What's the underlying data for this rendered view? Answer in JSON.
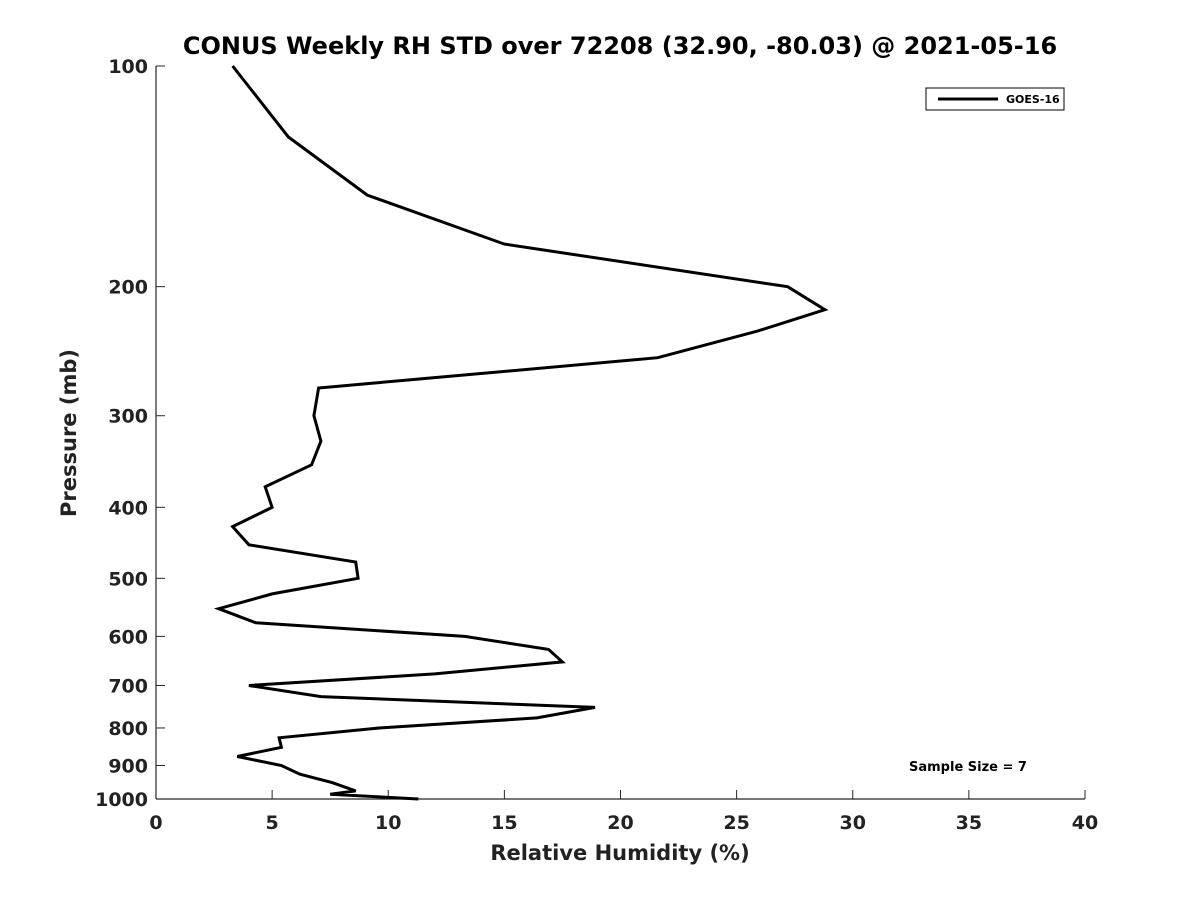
{
  "chart_data": {
    "type": "line",
    "title": "CONUS Weekly RH STD over 72208 (32.90, -80.03) @ 2021-05-16",
    "xlabel": "Relative Humidity (%)",
    "ylabel": "Pressure (mb)",
    "xlim": [
      0,
      40
    ],
    "ylim": [
      100,
      1000
    ],
    "y_scale": "log",
    "y_reversed": true,
    "x_ticks": [
      0,
      5,
      10,
      15,
      20,
      25,
      30,
      35,
      40
    ],
    "x_tick_labels": [
      "0",
      "5",
      "10",
      "15",
      "20",
      "25",
      "30",
      "35",
      "40"
    ],
    "y_ticks": [
      100,
      200,
      300,
      400,
      500,
      600,
      700,
      800,
      900,
      1000
    ],
    "y_tick_labels": [
      "100",
      "200",
      "300",
      "400",
      "500",
      "600",
      "700",
      "800",
      "900",
      "1000"
    ],
    "grid": false,
    "legend_position": "top-right",
    "annotation": "Sample Size = 7",
    "series": [
      {
        "name": "GOES-16",
        "color": "#000000",
        "points": [
          {
            "x": 3.3,
            "y": 100
          },
          {
            "x": 5.7,
            "y": 125
          },
          {
            "x": 9.1,
            "y": 150
          },
          {
            "x": 15.0,
            "y": 175
          },
          {
            "x": 27.2,
            "y": 200
          },
          {
            "x": 28.8,
            "y": 215
          },
          {
            "x": 25.9,
            "y": 230
          },
          {
            "x": 21.6,
            "y": 250
          },
          {
            "x": 7.0,
            "y": 275
          },
          {
            "x": 6.8,
            "y": 300
          },
          {
            "x": 7.1,
            "y": 325
          },
          {
            "x": 6.7,
            "y": 350
          },
          {
            "x": 4.7,
            "y": 375
          },
          {
            "x": 5.0,
            "y": 400
          },
          {
            "x": 3.3,
            "y": 425
          },
          {
            "x": 4.0,
            "y": 450
          },
          {
            "x": 8.6,
            "y": 475
          },
          {
            "x": 8.7,
            "y": 500
          },
          {
            "x": 5.0,
            "y": 525
          },
          {
            "x": 2.7,
            "y": 550
          },
          {
            "x": 4.3,
            "y": 575
          },
          {
            "x": 13.3,
            "y": 600
          },
          {
            "x": 16.9,
            "y": 625
          },
          {
            "x": 17.5,
            "y": 650
          },
          {
            "x": 12.0,
            "y": 675
          },
          {
            "x": 4.0,
            "y": 700
          },
          {
            "x": 7.1,
            "y": 725
          },
          {
            "x": 18.9,
            "y": 750
          },
          {
            "x": 16.4,
            "y": 775
          },
          {
            "x": 9.6,
            "y": 800
          },
          {
            "x": 5.3,
            "y": 825
          },
          {
            "x": 5.4,
            "y": 850
          },
          {
            "x": 3.5,
            "y": 875
          },
          {
            "x": 5.4,
            "y": 900
          },
          {
            "x": 6.2,
            "y": 925
          },
          {
            "x": 7.6,
            "y": 950
          },
          {
            "x": 8.6,
            "y": 975
          },
          {
            "x": 7.5,
            "y": 985
          },
          {
            "x": 11.3,
            "y": 1000
          }
        ]
      }
    ]
  }
}
